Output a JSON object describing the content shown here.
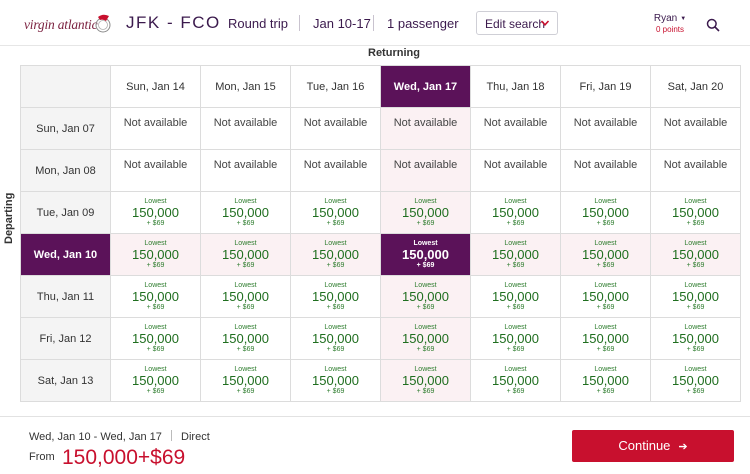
{
  "header": {
    "logo_text": "virgin atlantic",
    "route": "JFK - FCO",
    "trip_type": "Round trip",
    "dates": "Jan 10-17",
    "passengers": "1 passenger",
    "edit_label": "Edit search",
    "user_name": "Ryan",
    "user_points": "0 points"
  },
  "grid": {
    "returning_label": "Returning",
    "departing_label": "Departing",
    "columns": [
      "Sun, Jan 14",
      "Mon, Jan 15",
      "Tue, Jan 16",
      "Wed, Jan 17",
      "Thu, Jan 18",
      "Fri, Jan 19",
      "Sat, Jan 20"
    ],
    "rows": [
      {
        "label": "Sun, Jan 07",
        "cells": [
          "Not available",
          "Not available",
          "Not available",
          "Not available",
          "Not available",
          "Not available",
          "Not available"
        ]
      },
      {
        "label": "Mon, Jan 08",
        "cells": [
          "Not available",
          "Not available",
          "Not available",
          "Not available",
          "Not available",
          "Not available",
          "Not available"
        ]
      },
      {
        "label": "Tue, Jan 09",
        "cells": [
          "fare",
          "fare",
          "fare",
          "fare",
          "fare",
          "fare",
          "fare"
        ]
      },
      {
        "label": "Wed, Jan 10",
        "cells": [
          "fare",
          "fare",
          "fare",
          "fare",
          "fare",
          "fare",
          "fare"
        ]
      },
      {
        "label": "Thu, Jan 11",
        "cells": [
          "fare",
          "fare",
          "fare",
          "fare",
          "fare",
          "fare",
          "fare"
        ]
      },
      {
        "label": "Fri, Jan 12",
        "cells": [
          "fare",
          "fare",
          "fare",
          "fare",
          "fare",
          "fare",
          "fare"
        ]
      },
      {
        "label": "Sat, Jan 13",
        "cells": [
          "fare",
          "fare",
          "fare",
          "fare",
          "fare",
          "fare",
          "fare"
        ]
      }
    ],
    "fare": {
      "lowest": "Lowest",
      "points": "150,000",
      "tax": "+ $69"
    },
    "selected_row": 3,
    "selected_col": 3
  },
  "footer": {
    "depart": "Wed, Jan 10",
    "return": "- Wed, Jan 17",
    "type": "Direct",
    "from_label": "From",
    "price": "150,000+$69",
    "continue_label": "Continue"
  },
  "colors": {
    "brand_purple": "#5b1259",
    "accent_red": "#c8102e",
    "fare_green": "#1f6e1f"
  },
  "icons": [
    "virgin-logo-icon",
    "chevron-down-icon",
    "search-icon",
    "arrow-right-icon"
  ]
}
